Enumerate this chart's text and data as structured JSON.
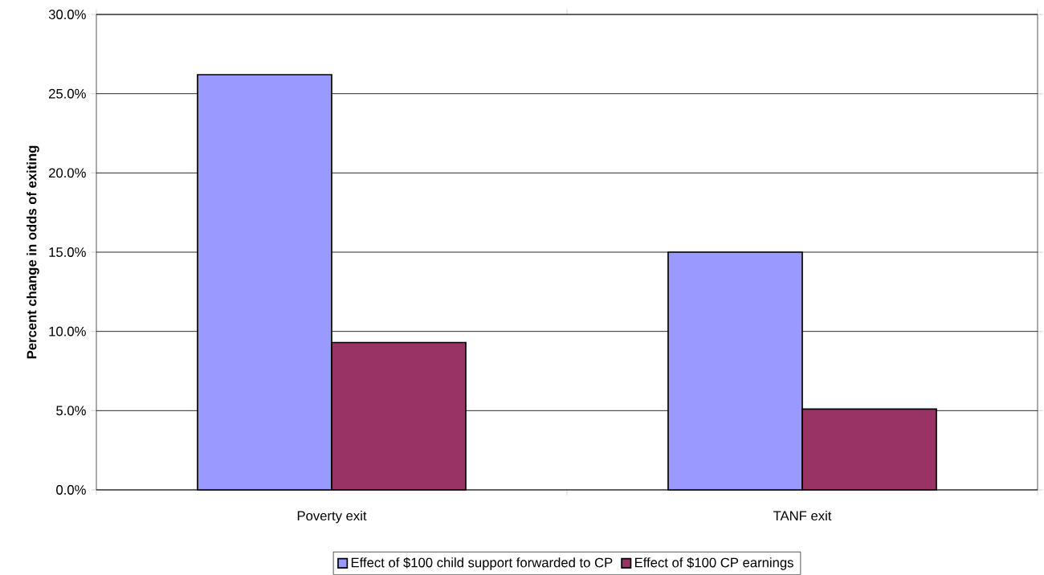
{
  "chart_data": {
    "type": "bar",
    "ylabel": "Percent change in odds of exiting",
    "categories": [
      "Poverty exit",
      "TANF exit"
    ],
    "series": [
      {
        "name": "Effect of $100 child support forwarded to CP",
        "color": "#9999ff",
        "values": [
          26.2,
          15.0
        ]
      },
      {
        "name": "Effect of $100 CP earnings",
        "color": "#993366",
        "values": [
          9.3,
          5.1
        ]
      }
    ],
    "ylim": [
      0,
      30
    ],
    "yticks": [
      {
        "value": 0,
        "label": "0.0%"
      },
      {
        "value": 5,
        "label": "5.0%"
      },
      {
        "value": 10,
        "label": "10.0%"
      },
      {
        "value": 15,
        "label": "15.0%"
      },
      {
        "value": 20,
        "label": "20.0%"
      },
      {
        "value": 25,
        "label": "25.0%"
      },
      {
        "value": 30,
        "label": "30.0%"
      }
    ],
    "grid": "y",
    "legend": "bottom"
  }
}
